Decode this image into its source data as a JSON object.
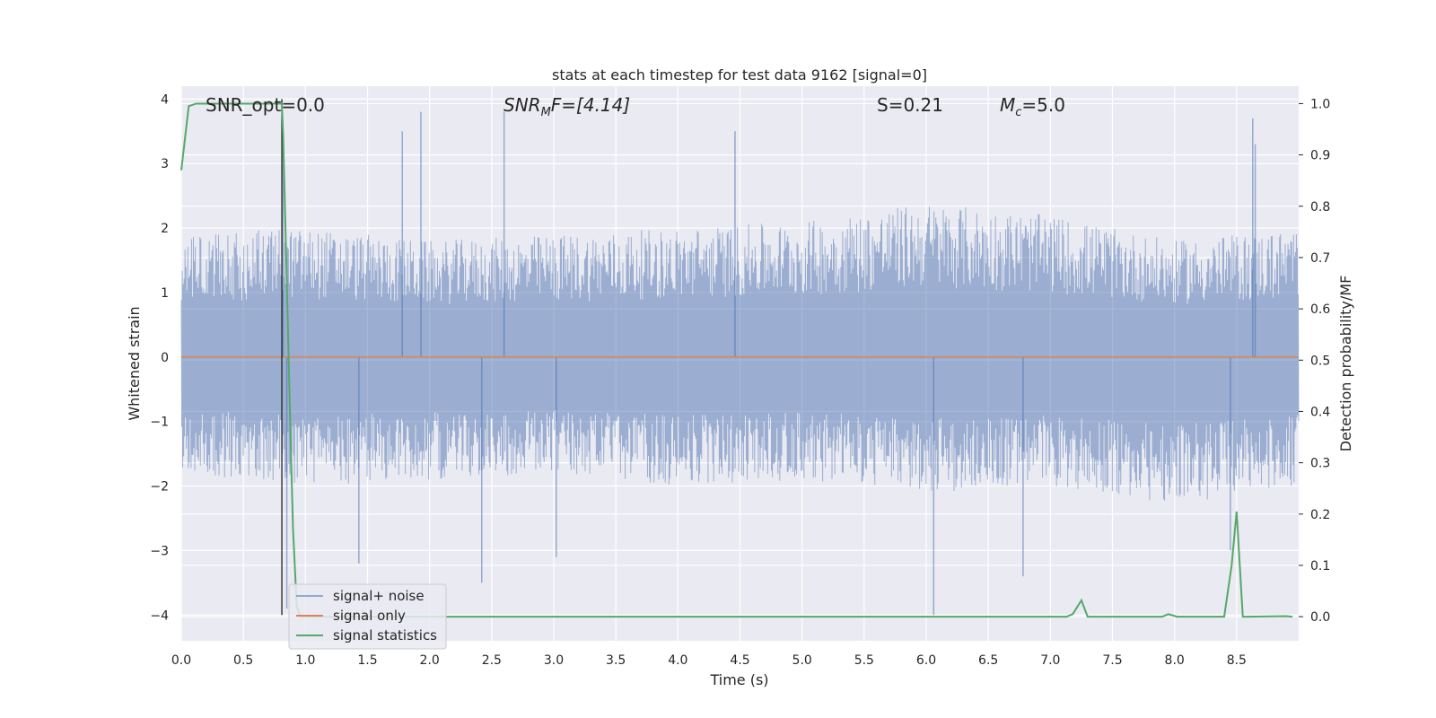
{
  "chart_data": {
    "type": "line",
    "title": "stats at each timestep for test data 9162 [signal=0]",
    "xlabel": "Time (s)",
    "ylabel_left": "Whitened strain",
    "ylabel_right": "Detection probability/MF",
    "xlim": [
      0.0,
      9.0
    ],
    "ylim_left": [
      -4.4,
      4.2
    ],
    "ylim_right": [
      -0.047,
      1.034
    ],
    "x_ticks": [
      "0.0",
      "0.5",
      "1.0",
      "1.5",
      "2.0",
      "2.5",
      "3.0",
      "3.5",
      "4.0",
      "4.5",
      "5.0",
      "5.5",
      "6.0",
      "6.5",
      "7.0",
      "7.5",
      "8.0",
      "8.5"
    ],
    "y_ticks_left": [
      "4",
      "3",
      "2",
      "1",
      "0",
      "−1",
      "−2",
      "−3",
      "−4"
    ],
    "y_ticks_right": [
      "1.0",
      "0.9",
      "0.8",
      "0.7",
      "0.6",
      "0.5",
      "0.4",
      "0.3",
      "0.2",
      "0.1",
      "0.0"
    ],
    "grid": true,
    "legend_position": "lower-left",
    "annotations": {
      "snr_opt": "SNR_opt=0.0",
      "snr_mf_sym": "SNR",
      "snr_mf_sub": "M",
      "snr_mf_rest": "F=[4.14]",
      "s_value": "S=0.21",
      "mc_sym": "M",
      "mc_sub": "c",
      "mc_rest": "=5.0"
    },
    "marker_line_x": 0.81,
    "series": [
      {
        "name": "signal+ noise",
        "axis": "left",
        "color": "#4c72b0",
        "style": "dense noise trace, values mostly within about ±2, extremes near ±3.8",
        "envelope_upper": [
          1.9,
          2.0,
          1.8,
          1.9,
          2.0,
          2.1,
          2.4,
          2.2,
          1.8,
          2.0
        ],
        "envelope_lower": [
          -1.8,
          -2.0,
          -1.9,
          -1.8,
          -2.0,
          -1.9,
          -2.1,
          -2.0,
          -2.3,
          -2.0
        ],
        "spikes": [
          {
            "x": 0.82,
            "y": 3.3
          },
          {
            "x": 0.85,
            "y": -3.9
          },
          {
            "x": 1.43,
            "y": -3.2
          },
          {
            "x": 1.78,
            "y": 3.5
          },
          {
            "x": 1.93,
            "y": 3.8
          },
          {
            "x": 2.42,
            "y": -3.5
          },
          {
            "x": 2.6,
            "y": 3.8
          },
          {
            "x": 3.02,
            "y": -3.1
          },
          {
            "x": 4.46,
            "y": 3.5
          },
          {
            "x": 6.06,
            "y": -4.0
          },
          {
            "x": 6.78,
            "y": -3.4
          },
          {
            "x": 8.45,
            "y": -3.0
          },
          {
            "x": 8.63,
            "y": 3.7
          },
          {
            "x": 8.65,
            "y": 3.3
          }
        ]
      },
      {
        "name": "signal only",
        "axis": "left",
        "color": "#dd8452",
        "x": [
          0.0,
          9.0
        ],
        "y": [
          0.0,
          0.0
        ]
      },
      {
        "name": "signal statistics",
        "axis": "right",
        "color": "#55a868",
        "x": [
          0.0,
          0.06,
          0.12,
          0.2,
          0.3,
          0.4,
          0.5,
          0.6,
          0.7,
          0.8,
          0.81,
          0.82,
          0.84,
          0.86,
          0.88,
          0.9,
          0.93,
          0.96,
          1.0,
          2.0,
          3.0,
          4.0,
          5.0,
          6.0,
          7.0,
          7.13,
          7.18,
          7.25,
          7.3,
          7.9,
          7.95,
          8.02,
          8.4,
          8.46,
          8.5,
          8.55,
          8.6,
          8.9,
          8.95
        ],
        "y": [
          0.87,
          0.995,
          1.0,
          1.0,
          1.0,
          1.0,
          1.0,
          1.0,
          1.0,
          1.0,
          1.0,
          0.94,
          0.75,
          0.55,
          0.35,
          0.17,
          0.02,
          0.0,
          0.0,
          0.0,
          0.0,
          0.0,
          0.0,
          0.0,
          0.0,
          0.0,
          0.005,
          0.032,
          0.0,
          0.0,
          0.005,
          0.0,
          0.0,
          0.1,
          0.205,
          0.0,
          0.0,
          0.001,
          0.0
        ]
      }
    ]
  }
}
